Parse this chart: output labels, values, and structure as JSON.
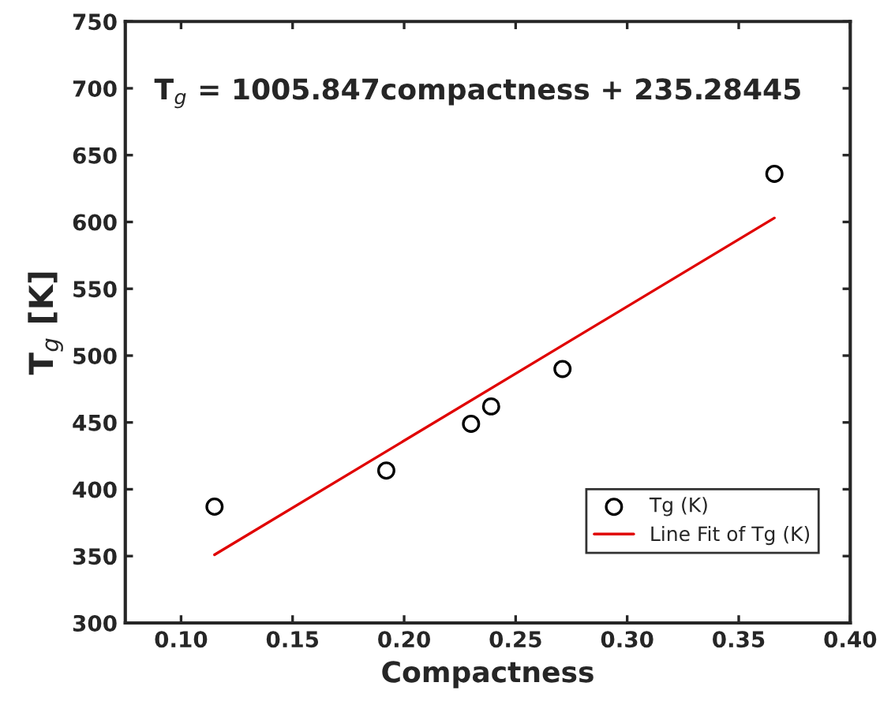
{
  "chart_data": {
    "type": "scatter",
    "xlabel": "Compactness",
    "ylabel": "T$_{g}$ [K]",
    "annotations": [
      "T$_{g}$ = 1005.847compactness + 235.28445"
    ],
    "xlim": [
      0.075,
      0.4
    ],
    "xticks": [
      {
        "value": 0.1,
        "label": "0.10"
      },
      0.15,
      {
        "value": 0.2,
        "label": "0.20"
      },
      0.25,
      {
        "value": 0.3,
        "label": "0.30"
      },
      0.35,
      {
        "value": 0.4,
        "label": "0.40"
      }
    ],
    "ylim": [
      300,
      750
    ],
    "yticks": [
      300,
      350,
      400,
      450,
      500,
      550,
      600,
      650,
      700,
      750
    ],
    "grid": false,
    "legend": "bottom right",
    "series": [
      {
        "name": "Tg (K)",
        "marker": "circle",
        "color": "#000000",
        "x": [
          0.115,
          0.192,
          0.23,
          0.239,
          0.271,
          0.366
        ],
        "values": [
          387,
          414,
          449,
          462,
          490,
          636
        ]
      },
      {
        "name": "Line Fit of Tg (K)",
        "type": "line",
        "line_style": "solid",
        "color": "#e00000",
        "x": [
          0.115,
          0.366
        ],
        "values": [
          351,
          603
        ]
      }
    ]
  }
}
